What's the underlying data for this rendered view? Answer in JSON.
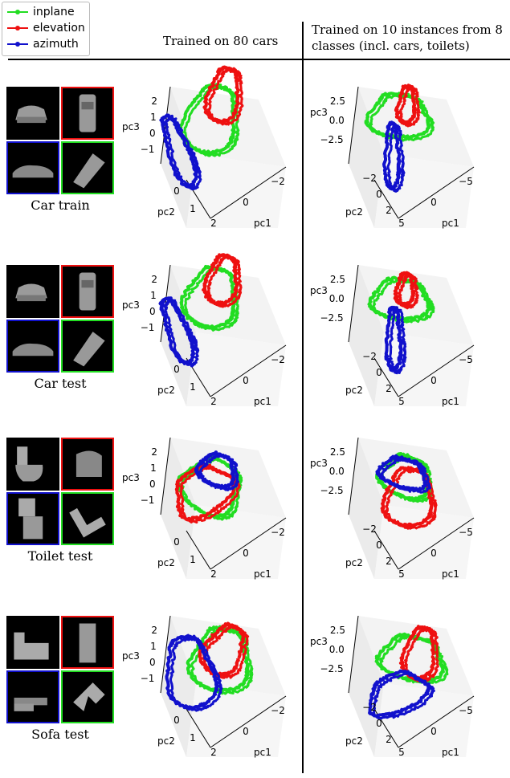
{
  "legend": [
    {
      "label": "inplane",
      "color": "#22dd22"
    },
    {
      "label": "elevation",
      "color": "#ee1111"
    },
    {
      "label": "azimuth",
      "color": "#1111cc"
    }
  ],
  "headers": {
    "col1": "Trained on 80 cars",
    "col2_line1": "Trained on 10 instances from 8",
    "col2_line2": "classes (incl. cars, toilets)"
  },
  "rows": [
    {
      "label": "Car train",
      "object": "car"
    },
    {
      "label": "Car test",
      "object": "car"
    },
    {
      "label": "Toilet test",
      "object": "toilet"
    },
    {
      "label": "Sofa test",
      "object": "sofa"
    }
  ],
  "chart_data": [
    {
      "type": "line",
      "title": "Trained on 80 cars",
      "row": "Car train",
      "xlabel": "pc1",
      "ylabel": "pc2",
      "zlabel": "pc3",
      "xticks": [
        "−2",
        "0",
        "2"
      ],
      "yticks": [
        "0",
        "1"
      ],
      "zticks": [
        "2",
        "1",
        "0",
        "−1"
      ],
      "series": [
        {
          "name": "inplane",
          "shape": "loop"
        },
        {
          "name": "elevation",
          "shape": "loop"
        },
        {
          "name": "azimuth",
          "shape": "loop"
        }
      ]
    },
    {
      "type": "line",
      "title": "Trained on 10 instances from 8 classes (incl. cars, toilets)",
      "row": "Car train",
      "xlabel": "pc1",
      "ylabel": "pc2",
      "zlabel": "pc3",
      "xticks": [
        "−5",
        "0",
        "5"
      ],
      "yticks": [
        "−2",
        "0",
        "2"
      ],
      "zticks": [
        "2.5",
        "0.0",
        "−2.5"
      ],
      "series": [
        {
          "name": "inplane",
          "shape": "loop"
        },
        {
          "name": "elevation",
          "shape": "loop"
        },
        {
          "name": "azimuth",
          "shape": "loop"
        }
      ]
    },
    {
      "type": "line",
      "title": "Trained on 80 cars",
      "row": "Car test",
      "xlabel": "pc1",
      "ylabel": "pc2",
      "zlabel": "pc3",
      "xticks": [
        "−2",
        "0",
        "2"
      ],
      "yticks": [
        "0",
        "1"
      ],
      "zticks": [
        "2",
        "1",
        "0",
        "−1"
      ],
      "series": [
        {
          "name": "inplane",
          "shape": "loop"
        },
        {
          "name": "elevation",
          "shape": "loop"
        },
        {
          "name": "azimuth",
          "shape": "loop"
        }
      ]
    },
    {
      "type": "line",
      "title": "Trained on 10 instances from 8 classes (incl. cars, toilets)",
      "row": "Car test",
      "xlabel": "pc1",
      "ylabel": "pc2",
      "zlabel": "pc3",
      "xticks": [
        "−5",
        "0",
        "5"
      ],
      "yticks": [
        "−2",
        "0",
        "2"
      ],
      "zticks": [
        "2.5",
        "0.0",
        "−2.5"
      ],
      "series": [
        {
          "name": "inplane",
          "shape": "loop"
        },
        {
          "name": "elevation",
          "shape": "loop"
        },
        {
          "name": "azimuth",
          "shape": "loop"
        }
      ]
    },
    {
      "type": "line",
      "title": "Trained on 80 cars",
      "row": "Toilet test",
      "xlabel": "pc1",
      "ylabel": "pc2",
      "zlabel": "pc3",
      "xticks": [
        "−2",
        "0",
        "2"
      ],
      "yticks": [
        "0",
        "1"
      ],
      "zticks": [
        "2",
        "1",
        "0",
        "−1"
      ],
      "series": [
        {
          "name": "inplane",
          "shape": "loop"
        },
        {
          "name": "elevation",
          "shape": "loop"
        },
        {
          "name": "azimuth",
          "shape": "loop"
        }
      ]
    },
    {
      "type": "line",
      "title": "Trained on 10 instances from 8 classes (incl. cars, toilets)",
      "row": "Toilet test",
      "xlabel": "pc1",
      "ylabel": "pc2",
      "zlabel": "pc3",
      "xticks": [
        "−5",
        "0",
        "5"
      ],
      "yticks": [
        "−2",
        "0",
        "2"
      ],
      "zticks": [
        "2.5",
        "0.0",
        "−2.5"
      ],
      "series": [
        {
          "name": "inplane",
          "shape": "loop"
        },
        {
          "name": "elevation",
          "shape": "loop"
        },
        {
          "name": "azimuth",
          "shape": "loop"
        }
      ]
    },
    {
      "type": "line",
      "title": "Trained on 80 cars",
      "row": "Sofa test",
      "xlabel": "pc1",
      "ylabel": "pc2",
      "zlabel": "pc3",
      "xticks": [
        "−2",
        "0",
        "2"
      ],
      "yticks": [
        "0",
        "1"
      ],
      "zticks": [
        "2",
        "1",
        "0",
        "−1"
      ],
      "series": [
        {
          "name": "inplane",
          "shape": "loop"
        },
        {
          "name": "elevation",
          "shape": "loop"
        },
        {
          "name": "azimuth",
          "shape": "loop"
        }
      ]
    },
    {
      "type": "line",
      "title": "Trained on 10 instances from 8 classes (incl. cars, toilets)",
      "row": "Sofa test",
      "xlabel": "pc1",
      "ylabel": "pc2",
      "zlabel": "pc3",
      "xticks": [
        "−5",
        "0",
        "5"
      ],
      "yticks": [
        "−2",
        "0",
        "2"
      ],
      "zticks": [
        "2.5",
        "0.0",
        "−2.5"
      ],
      "series": [
        {
          "name": "inplane",
          "shape": "loop"
        },
        {
          "name": "elevation",
          "shape": "loop"
        },
        {
          "name": "azimuth",
          "shape": "loop"
        }
      ]
    }
  ]
}
